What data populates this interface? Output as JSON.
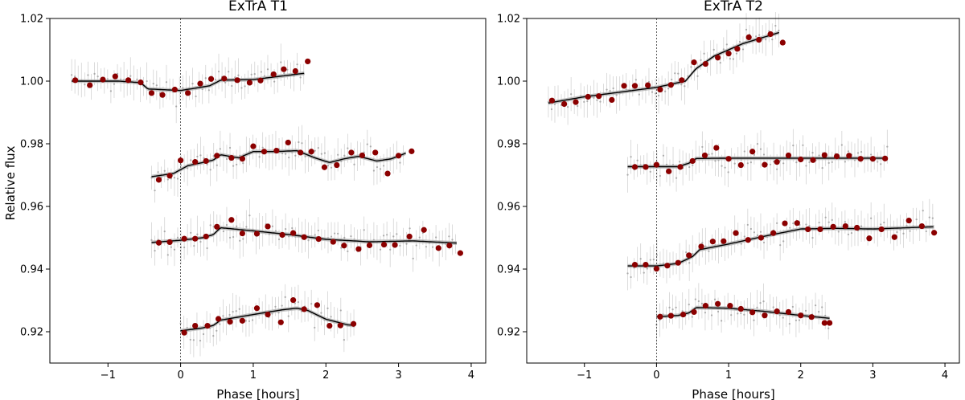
{
  "ylabel": "Relative flux",
  "chart_data": [
    {
      "type": "scatter",
      "title": "ExTrA T1",
      "xlabel": "Phase [hours]",
      "ylabel": "Relative flux",
      "xlim": [
        -1.8,
        4.2
      ],
      "ylim": [
        0.91,
        1.02
      ],
      "xticks": [
        -1,
        0,
        1,
        2,
        3,
        4
      ],
      "yticks": [
        0.92,
        0.94,
        0.96,
        0.98,
        1.0
      ],
      "ytick_labels": [
        "0.92",
        "0.94",
        "0.96",
        "0.98",
        "1.00",
        "1.02"
      ],
      "ytick_values": [
        0.92,
        0.94,
        0.96,
        0.98,
        1.0,
        1.02
      ],
      "xtick_labels": [
        "−1",
        "0",
        "1",
        "2",
        "3",
        "4"
      ],
      "transit_line_x": 0,
      "grid": false,
      "series": [
        {
          "binned": {
            "x": [
              -1.45,
              -1.25,
              -1.07,
              -0.9,
              -0.72,
              -0.55,
              -0.4,
              -0.25,
              -0.08,
              0.1,
              0.27,
              0.42,
              0.6,
              0.78,
              0.95,
              1.1,
              1.28,
              1.42,
              1.58,
              1.75
            ],
            "y": [
              1.0003,
              0.9987,
              1.0005,
              1.0015,
              1.0003,
              0.9996,
              0.9962,
              0.9956,
              0.9973,
              0.9962,
              0.9992,
              1.0007,
              1.0008,
              1.0003,
              0.9995,
              1.0002,
              1.0022,
              1.0038,
              1.0032,
              1.0063
            ]
          },
          "model": {
            "x": [
              -1.5,
              -0.85,
              -0.55,
              -0.45,
              0,
              0.4,
              0.55,
              1.0,
              1.7
            ],
            "y": [
              1.0,
              1.0,
              0.9995,
              0.9975,
              0.997,
              0.9985,
              1.0003,
              1.0005,
              1.0025
            ]
          }
        },
        {
          "binned": {
            "x": [
              -0.3,
              -0.15,
              0.0,
              0.2,
              0.35,
              0.5,
              0.7,
              0.85,
              1.0,
              1.15,
              1.32,
              1.48,
              1.65,
              1.8,
              1.98,
              2.15,
              2.35,
              2.5,
              2.68,
              2.85,
              3.0,
              3.18
            ],
            "y": [
              0.9685,
              0.9698,
              0.9747,
              0.9742,
              0.9745,
              0.9762,
              0.9755,
              0.9752,
              0.9792,
              0.9775,
              0.9778,
              0.9804,
              0.9772,
              0.9775,
              0.9725,
              0.9732,
              0.9772,
              0.9763,
              0.9772,
              0.9705,
              0.9762,
              0.9776
            ]
          },
          "model": {
            "x": [
              -0.4,
              -0.1,
              0.1,
              0.3,
              0.45,
              0.55,
              0.8,
              1.0,
              1.3,
              1.6,
              1.85,
              2.05,
              2.25,
              2.45,
              2.7,
              2.9,
              3.1
            ],
            "y": [
              0.9695,
              0.9705,
              0.973,
              0.974,
              0.9748,
              0.9765,
              0.9755,
              0.9775,
              0.9775,
              0.9778,
              0.9755,
              0.974,
              0.9752,
              0.976,
              0.9745,
              0.9752,
              0.977
            ]
          }
        },
        {
          "binned": {
            "x": [
              -0.3,
              -0.15,
              0.05,
              0.2,
              0.35,
              0.5,
              0.7,
              0.85,
              1.05,
              1.2,
              1.4,
              1.55,
              1.7,
              1.9,
              2.1,
              2.25,
              2.45,
              2.6,
              2.8,
              2.95,
              3.15,
              3.35,
              3.55,
              3.7,
              3.85
            ],
            "y": [
              0.9484,
              0.9486,
              0.9497,
              0.9497,
              0.9504,
              0.9535,
              0.9557,
              0.9514,
              0.9513,
              0.9536,
              0.9509,
              0.9515,
              0.9502,
              0.9496,
              0.9487,
              0.9475,
              0.9464,
              0.9476,
              0.9478,
              0.9477,
              0.9504,
              0.9525,
              0.9467,
              0.9475,
              0.9451
            ]
          },
          "model": {
            "x": [
              -0.4,
              0.0,
              0.3,
              0.45,
              0.55,
              1.0,
              1.5,
              2.0,
              2.6,
              3.2,
              3.8
            ],
            "y": [
              0.9485,
              0.9492,
              0.95,
              0.951,
              0.9532,
              0.9522,
              0.951,
              0.9495,
              0.9487,
              0.949,
              0.9483
            ]
          }
        },
        {
          "binned": {
            "x": [
              0.05,
              0.2,
              0.37,
              0.52,
              0.68,
              0.85,
              1.05,
              1.2,
              1.38,
              1.55,
              1.7,
              1.88,
              2.05,
              2.2,
              2.38
            ],
            "y": [
              0.9197,
              0.9219,
              0.9219,
              0.9241,
              0.9232,
              0.9235,
              0.9275,
              0.9255,
              0.923,
              0.9301,
              0.9272,
              0.9285,
              0.9219,
              0.922,
              0.9225
            ]
          },
          "model": {
            "x": [
              0.0,
              0.3,
              0.45,
              0.55,
              1.0,
              1.4,
              1.6,
              1.75,
              2.0,
              2.3,
              2.4
            ],
            "y": [
              0.9203,
              0.9212,
              0.922,
              0.9237,
              0.9255,
              0.927,
              0.9275,
              0.9268,
              0.924,
              0.9222,
              0.922
            ]
          }
        }
      ]
    },
    {
      "type": "scatter",
      "title": "ExTrA T2",
      "xlabel": "Phase [hours]",
      "ylabel": "",
      "xlim": [
        -1.8,
        4.2
      ],
      "ylim": [
        0.91,
        1.02
      ],
      "ytick_labels": [
        "0.92",
        "0.94",
        "0.96",
        "0.98",
        "1.00",
        "1.02"
      ],
      "ytick_values": [
        0.92,
        0.94,
        0.96,
        0.98,
        1.0,
        1.02
      ],
      "xtick_labels": [
        "−1",
        "0",
        "1",
        "2",
        "3",
        "4"
      ],
      "xticks": [
        -1,
        0,
        1,
        2,
        3,
        4
      ],
      "transit_line_x": 0,
      "grid": false,
      "series": [
        {
          "binned": {
            "x": [
              -1.45,
              -1.28,
              -1.12,
              -0.95,
              -0.8,
              -0.62,
              -0.45,
              -0.3,
              -0.12,
              0.05,
              0.2,
              0.35,
              0.52,
              0.68,
              0.85,
              1.0,
              1.12,
              1.28,
              1.42,
              1.58,
              1.75
            ],
            "y": [
              0.9938,
              0.9927,
              0.9933,
              0.995,
              0.9952,
              0.994,
              0.9985,
              0.9985,
              0.9987,
              0.9973,
              0.9988,
              1.0003,
              1.006,
              1.0055,
              1.0075,
              1.0088,
              1.0103,
              1.014,
              1.0132,
              1.015,
              1.0123
            ]
          },
          "model": {
            "x": [
              -1.5,
              -1.0,
              -0.5,
              0.0,
              0.4,
              0.55,
              0.8,
              1.2,
              1.7
            ],
            "y": [
              0.993,
              0.995,
              0.9965,
              0.998,
              1.0,
              1.004,
              1.008,
              1.012,
              1.0155
            ]
          }
        },
        {
          "binned": {
            "x": [
              -0.3,
              -0.15,
              0.0,
              0.17,
              0.33,
              0.5,
              0.67,
              0.83,
              1.0,
              1.17,
              1.33,
              1.5,
              1.67,
              1.83,
              2.0,
              2.17,
              2.33,
              2.5,
              2.67,
              2.83,
              3.0,
              3.17
            ],
            "y": [
              0.9726,
              0.9726,
              0.9733,
              0.9712,
              0.9726,
              0.9745,
              0.9763,
              0.9787,
              0.9752,
              0.9732,
              0.9775,
              0.9733,
              0.9742,
              0.9763,
              0.975,
              0.9748,
              0.9764,
              0.976,
              0.9762,
              0.9752,
              0.9752,
              0.9753
            ]
          },
          "model": {
            "x": [
              -0.4,
              0.3,
              0.45,
              0.55,
              1.0,
              2.0,
              3.2
            ],
            "y": [
              0.9727,
              0.9727,
              0.9738,
              0.9753,
              0.9754,
              0.9754,
              0.9754
            ]
          }
        },
        {
          "binned": {
            "x": [
              -0.3,
              -0.15,
              0.0,
              0.15,
              0.3,
              0.45,
              0.62,
              0.78,
              0.93,
              1.1,
              1.27,
              1.45,
              1.62,
              1.78,
              1.95,
              2.1,
              2.27,
              2.45,
              2.62,
              2.78,
              2.95,
              3.12,
              3.3,
              3.5,
              3.68,
              3.85
            ],
            "y": [
              0.9414,
              0.9414,
              0.9401,
              0.9411,
              0.942,
              0.9444,
              0.9472,
              0.9488,
              0.9489,
              0.9515,
              0.9493,
              0.95,
              0.9515,
              0.9546,
              0.9547,
              0.9527,
              0.9527,
              0.9535,
              0.9537,
              0.9532,
              0.9498,
              0.9527,
              0.9502,
              0.9555,
              0.9537,
              0.9516
            ]
          },
          "model": {
            "x": [
              -0.4,
              0.0,
              0.3,
              0.5,
              0.6,
              1.0,
              1.5,
              2.0,
              2.5,
              3.0,
              3.85
            ],
            "y": [
              0.941,
              0.941,
              0.9418,
              0.944,
              0.9462,
              0.948,
              0.9505,
              0.9528,
              0.953,
              0.9528,
              0.9535
            ]
          }
        },
        {
          "binned": {
            "x": [
              0.05,
              0.2,
              0.37,
              0.52,
              0.68,
              0.85,
              1.02,
              1.17,
              1.33,
              1.5,
              1.67,
              1.83,
              2.0,
              2.15,
              2.33,
              2.4
            ],
            "y": [
              0.9248,
              0.9251,
              0.9255,
              0.9263,
              0.9283,
              0.9289,
              0.9283,
              0.9273,
              0.9262,
              0.9252,
              0.9265,
              0.9263,
              0.9252,
              0.9247,
              0.9228,
              0.9228
            ]
          },
          "model": {
            "x": [
              0.0,
              0.3,
              0.45,
              0.55,
              1.0,
              1.5,
              2.0,
              2.4
            ],
            "y": [
              0.9248,
              0.9252,
              0.926,
              0.9277,
              0.9275,
              0.9265,
              0.9252,
              0.9243
            ]
          }
        }
      ]
    }
  ],
  "colors": {
    "binned": "#8b0000",
    "model": "#000000",
    "model_band": "#b3b3b3",
    "raw": "#aaaaaa",
    "raw_err": "#d3d3d3",
    "transit_line": "#333333"
  }
}
